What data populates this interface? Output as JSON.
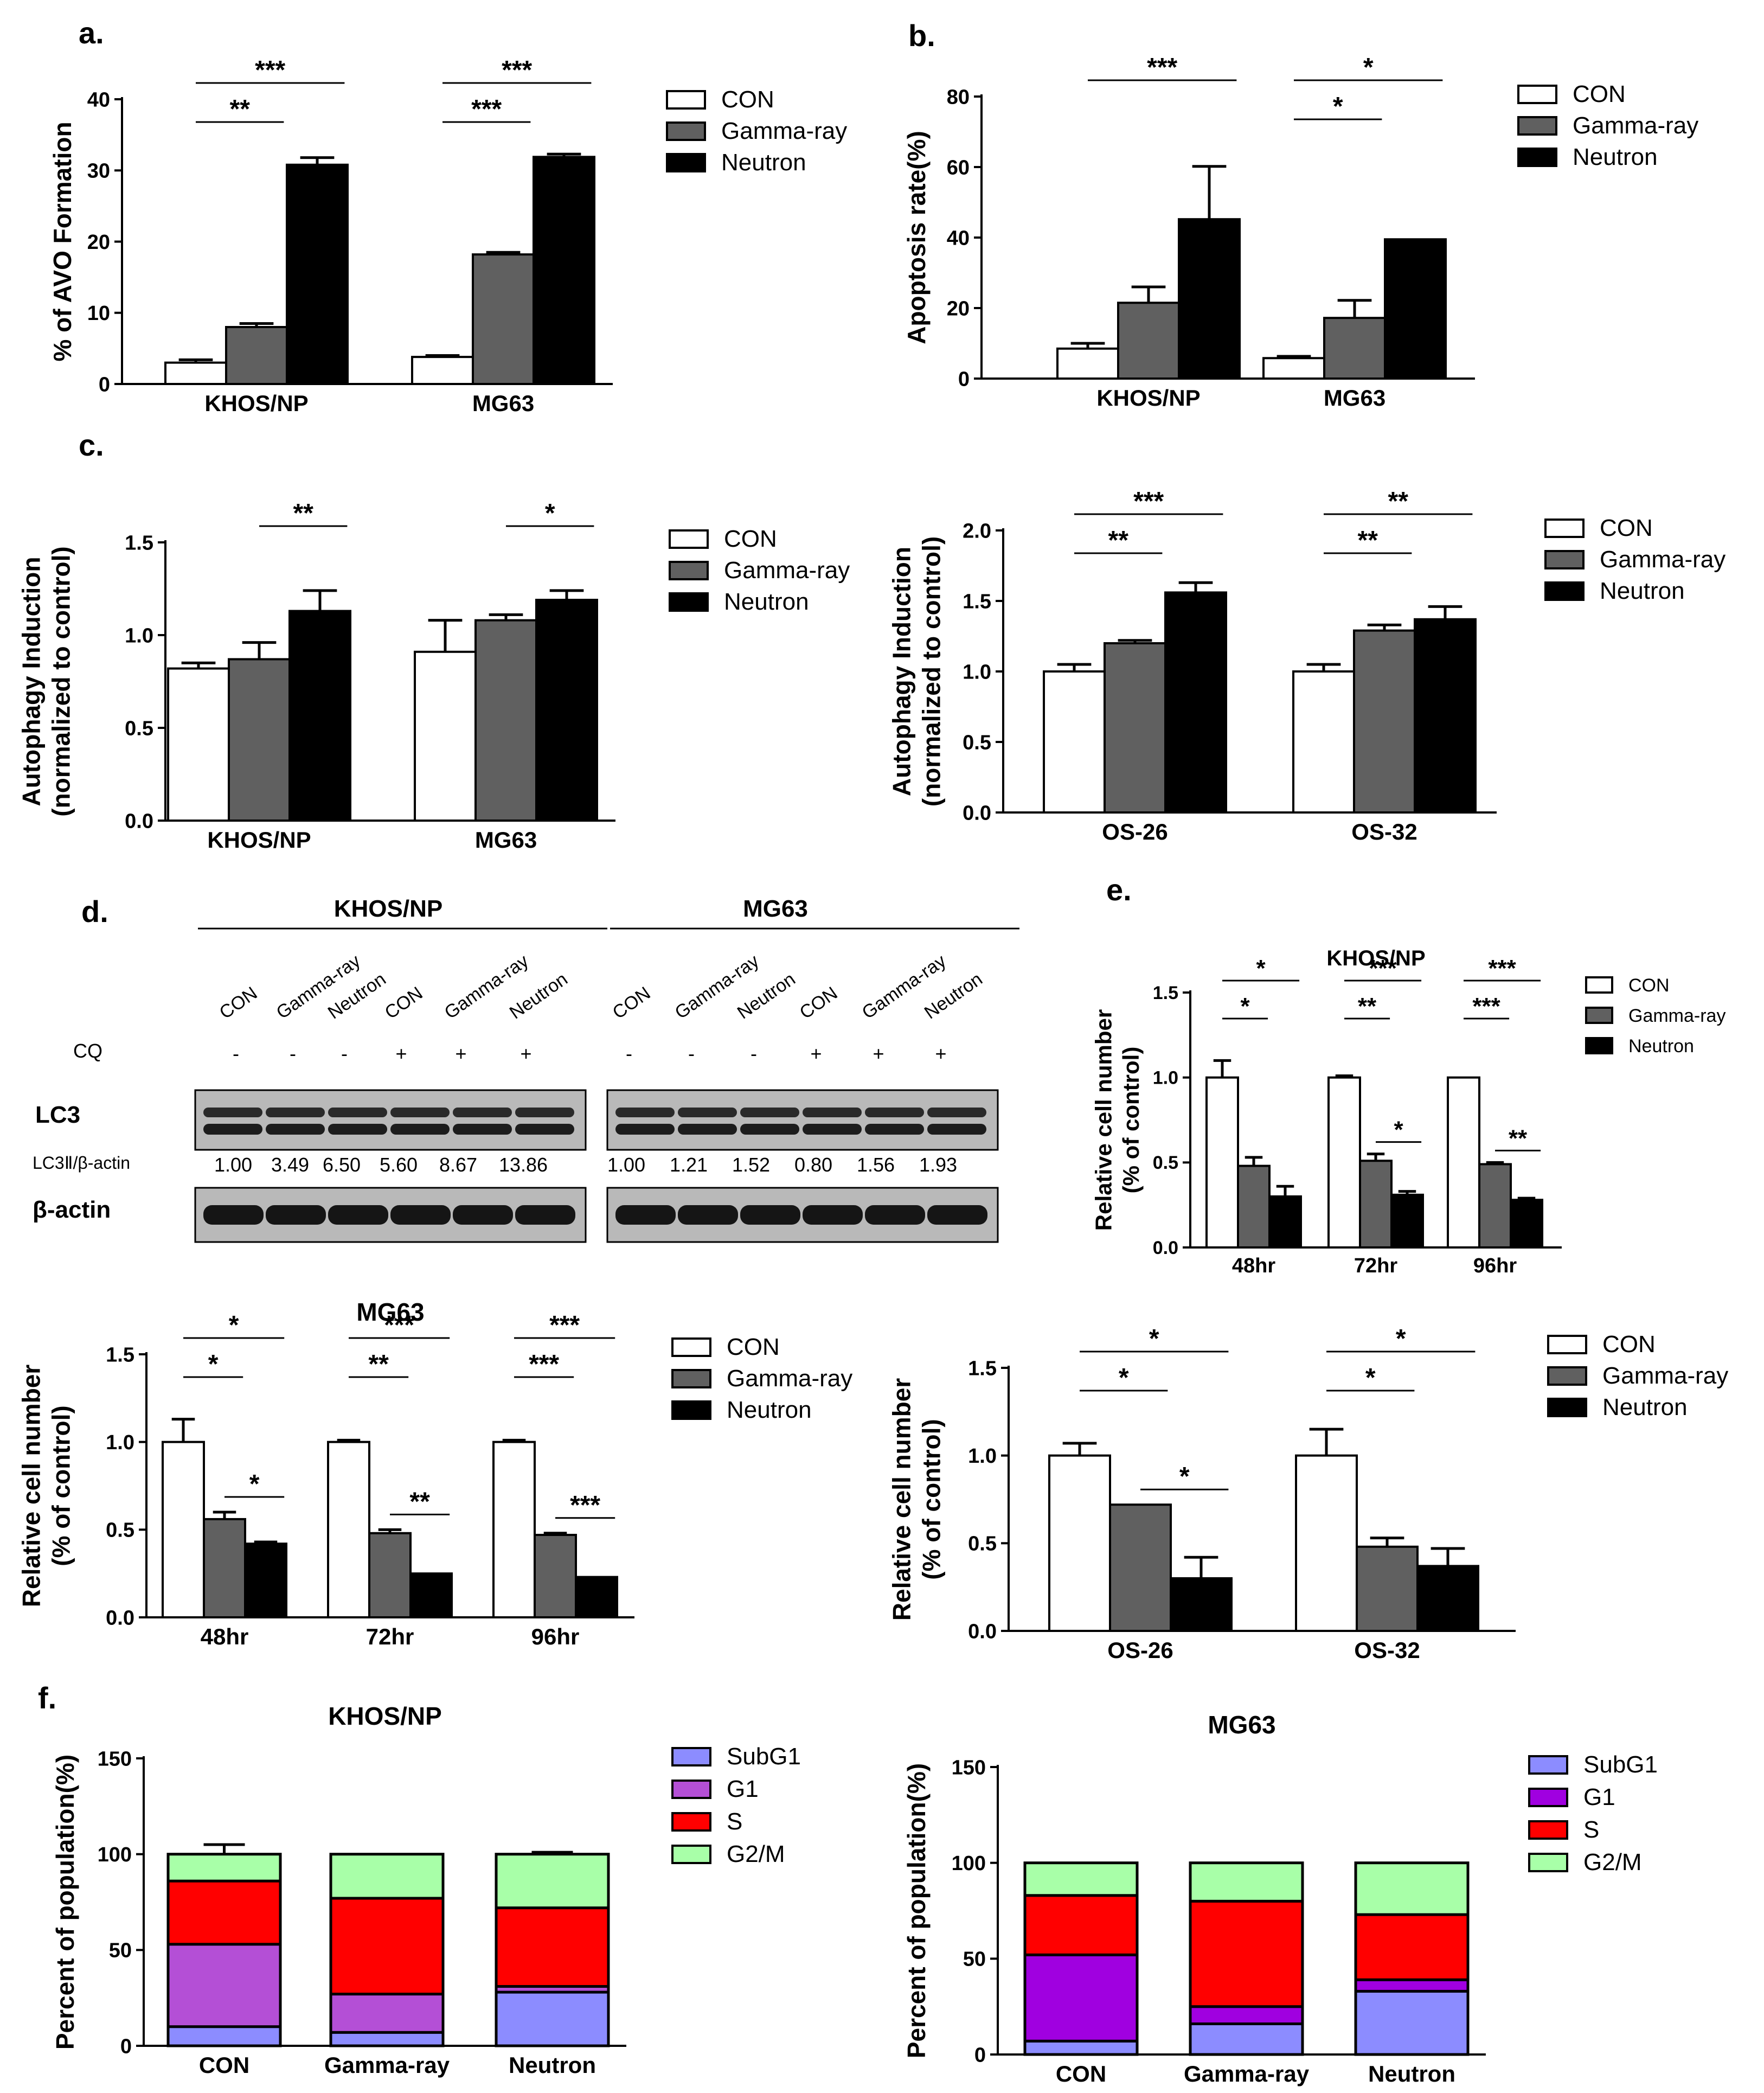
{
  "panel_labels": {
    "a": "a.",
    "b": "b.",
    "c": "c.",
    "d": "d.",
    "e": "e.",
    "f": "f."
  },
  "colors": {
    "con": "#ffffff",
    "gamma": "#606060",
    "neutron": "#000000",
    "subg1": "#8c8cff",
    "g1_khos": "#b44fd6",
    "g1_mg63": "#a000e0",
    "s": "#ff0000",
    "g2m": "#a8ffa8"
  },
  "legend3": [
    "CON",
    "Gamma-ray",
    "Neutron"
  ],
  "legend4": [
    "SubG1",
    "G1",
    "S",
    "G2/M"
  ],
  "blot": {
    "group_left": "KHOS/NP",
    "group_right": "MG63",
    "lanes": [
      "CON",
      "Gamma-ray",
      "Neutron",
      "CON",
      "Gamma-ray",
      "Neutron"
    ],
    "cq_label": "CQ",
    "cq": [
      "-",
      "-",
      "-",
      "+",
      "+",
      "+"
    ],
    "lc3_label": "LC3",
    "ratio_label": "LC3Ⅱ/β-actin",
    "actin_label": "β-actin",
    "ratios_left": [
      "1.00",
      "3.49",
      "6.50",
      "5.60",
      "8.67",
      "13.86"
    ],
    "ratios_right": [
      "1.00",
      "1.21",
      "1.52",
      "0.80",
      "1.56",
      "1.93"
    ]
  },
  "chart_data": [
    {
      "id": "a",
      "type": "bar",
      "title": "",
      "ylabel": "% of AVO Formation",
      "xlabel": "",
      "categories": [
        "KHOS/NP",
        "MG63"
      ],
      "ylim": [
        0,
        40
      ],
      "yticks": [
        "0",
        "10",
        "20",
        "30",
        "40"
      ],
      "series": [
        {
          "name": "CON",
          "values": [
            3,
            3.8
          ],
          "errors": [
            0.4,
            0.2
          ]
        },
        {
          "name": "Gamma-ray",
          "values": [
            8,
            18.2
          ],
          "errors": [
            0.5,
            0.3
          ]
        },
        {
          "name": "Neutron",
          "values": [
            30.8,
            31.9
          ],
          "errors": [
            1.0,
            0.4
          ]
        }
      ],
      "annotations": [
        {
          "text": "**",
          "group": 0,
          "from": 0,
          "to": 1,
          "level": 0
        },
        {
          "text": "***",
          "group": 0,
          "from": 0,
          "to": 2,
          "level": 1
        },
        {
          "text": "***",
          "group": 1,
          "from": 0,
          "to": 1,
          "level": 0
        },
        {
          "text": "***",
          "group": 1,
          "from": 0,
          "to": 2,
          "level": 1
        }
      ]
    },
    {
      "id": "b",
      "type": "bar",
      "title": "",
      "ylabel": "Apoptosis rate(%)",
      "xlabel": "",
      "categories": [
        "KHOS/NP",
        "MG63"
      ],
      "ylim": [
        0,
        80
      ],
      "yticks": [
        "0",
        "20",
        "40",
        "60",
        "80"
      ],
      "series": [
        {
          "name": "CON",
          "values": [
            8.5,
            5.8
          ],
          "errors": [
            1.5,
            0.5
          ]
        },
        {
          "name": "Gamma-ray",
          "values": [
            21.5,
            17.2
          ],
          "errors": [
            4.5,
            5.0
          ]
        },
        {
          "name": "Neutron",
          "values": [
            45.2,
            39.5
          ],
          "errors": [
            15,
            0
          ]
        }
      ],
      "annotations": [
        {
          "text": "***",
          "group": 0,
          "from": 0,
          "to": 2,
          "level": 1
        },
        {
          "text": "*",
          "group": 1,
          "from": 0,
          "to": 1,
          "level": 0
        },
        {
          "text": "*",
          "group": 1,
          "from": 0,
          "to": 2,
          "level": 1
        }
      ]
    },
    {
      "id": "c1",
      "type": "bar",
      "title": "",
      "ylabel": "Autophagy Induction|(normalized to control)",
      "xlabel": "",
      "categories": [
        "KHOS/NP",
        "MG63"
      ],
      "ylim": [
        0,
        1.5
      ],
      "yticks": [
        "0.0",
        "0.5",
        "1.0",
        "1.5"
      ],
      "series": [
        {
          "name": "CON",
          "values": [
            0.82,
            0.91
          ],
          "errors": [
            0.03,
            0.17
          ]
        },
        {
          "name": "Gamma-ray",
          "values": [
            0.87,
            1.08
          ],
          "errors": [
            0.09,
            0.03
          ]
        },
        {
          "name": "Neutron",
          "values": [
            1.13,
            1.19
          ],
          "errors": [
            0.11,
            0.05
          ]
        }
      ],
      "annotations": [
        {
          "text": "**",
          "group": 0,
          "from": 1,
          "to": 2,
          "level": 1
        },
        {
          "text": "*",
          "group": 1,
          "from": 1,
          "to": 2,
          "level": 1
        }
      ]
    },
    {
      "id": "c2",
      "type": "bar",
      "title": "",
      "ylabel": "Autophagy Induction|(normalized to control)",
      "xlabel": "",
      "categories": [
        "OS-26",
        "OS-32"
      ],
      "ylim": [
        0,
        2.0
      ],
      "yticks": [
        "0.0",
        "0.5",
        "1.0",
        "1.5",
        "2.0"
      ],
      "series": [
        {
          "name": "CON",
          "values": [
            1.0,
            1.0
          ],
          "errors": [
            0.05,
            0.05
          ]
        },
        {
          "name": "Gamma-ray",
          "values": [
            1.2,
            1.29
          ],
          "errors": [
            0.02,
            0.04
          ]
        },
        {
          "name": "Neutron",
          "values": [
            1.56,
            1.37
          ],
          "errors": [
            0.07,
            0.09
          ]
        }
      ],
      "annotations": [
        {
          "text": "**",
          "group": 0,
          "from": 0,
          "to": 1,
          "level": 0
        },
        {
          "text": "***",
          "group": 0,
          "from": 0,
          "to": 2,
          "level": 1
        },
        {
          "text": "**",
          "group": 1,
          "from": 0,
          "to": 1,
          "level": 0
        },
        {
          "text": "**",
          "group": 1,
          "from": 0,
          "to": 2,
          "level": 1
        }
      ]
    },
    {
      "id": "e1",
      "type": "bar",
      "title": "KHOS/NP",
      "ylabel": "Relative cell number|(% of control)",
      "xlabel": "",
      "categories": [
        "48hr",
        "72hr",
        "96hr"
      ],
      "ylim": [
        0,
        1.5
      ],
      "yticks": [
        "0.0",
        "0.5",
        "1.0",
        "1.5"
      ],
      "series": [
        {
          "name": "CON",
          "values": [
            1.0,
            1.0,
            1.0
          ],
          "errors": [
            0.1,
            0.01,
            0.0
          ]
        },
        {
          "name": "Gamma-ray",
          "values": [
            0.48,
            0.51,
            0.49
          ],
          "errors": [
            0.05,
            0.04,
            0.01
          ]
        },
        {
          "name": "Neutron",
          "values": [
            0.3,
            0.31,
            0.28
          ],
          "errors": [
            0.06,
            0.02,
            0.01
          ]
        }
      ],
      "annotations": [
        {
          "text": "*",
          "group": 0,
          "from": 0,
          "to": 1,
          "level": 0
        },
        {
          "text": "*",
          "group": 0,
          "from": 0,
          "to": 2,
          "level": 1
        },
        {
          "text": "**",
          "group": 1,
          "from": 0,
          "to": 1,
          "level": 0
        },
        {
          "text": "***",
          "group": 1,
          "from": 0,
          "to": 2,
          "level": 1
        },
        {
          "text": "*",
          "group": 1,
          "from": 1,
          "to": 2,
          "level": -1
        },
        {
          "text": "***",
          "group": 2,
          "from": 0,
          "to": 1,
          "level": 0
        },
        {
          "text": "***",
          "group": 2,
          "from": 0,
          "to": 2,
          "level": 1
        },
        {
          "text": "**",
          "group": 2,
          "from": 1,
          "to": 2,
          "level": -1
        }
      ]
    },
    {
      "id": "e2",
      "type": "bar",
      "title": "MG63",
      "ylabel": "Relative cell number|(% of control)",
      "xlabel": "",
      "categories": [
        "48hr",
        "72hr",
        "96hr"
      ],
      "ylim": [
        0,
        1.5
      ],
      "yticks": [
        "0.0",
        "0.5",
        "1.0",
        "1.5"
      ],
      "series": [
        {
          "name": "CON",
          "values": [
            1.0,
            1.0,
            1.0
          ],
          "errors": [
            0.13,
            0.01,
            0.01
          ]
        },
        {
          "name": "Gamma-ray",
          "values": [
            0.56,
            0.48,
            0.47
          ],
          "errors": [
            0.04,
            0.02,
            0.01
          ]
        },
        {
          "name": "Neutron",
          "values": [
            0.42,
            0.25,
            0.23
          ],
          "errors": [
            0.01,
            0.0,
            0.0
          ]
        }
      ],
      "annotations": [
        {
          "text": "*",
          "group": 0,
          "from": 0,
          "to": 1,
          "level": 0
        },
        {
          "text": "*",
          "group": 0,
          "from": 0,
          "to": 2,
          "level": 1
        },
        {
          "text": "*",
          "group": 0,
          "from": 1,
          "to": 2,
          "level": -1
        },
        {
          "text": "**",
          "group": 1,
          "from": 0,
          "to": 1,
          "level": 0
        },
        {
          "text": "***",
          "group": 1,
          "from": 0,
          "to": 2,
          "level": 1
        },
        {
          "text": "**",
          "group": 1,
          "from": 1,
          "to": 2,
          "level": -1
        },
        {
          "text": "***",
          "group": 2,
          "from": 0,
          "to": 1,
          "level": 0
        },
        {
          "text": "***",
          "group": 2,
          "from": 0,
          "to": 2,
          "level": 1
        },
        {
          "text": "***",
          "group": 2,
          "from": 1,
          "to": 2,
          "level": -1
        }
      ]
    },
    {
      "id": "e3",
      "type": "bar",
      "title": "",
      "ylabel": "Relative cell number|(% of control)",
      "xlabel": "",
      "categories": [
        "OS-26",
        "OS-32"
      ],
      "ylim": [
        0,
        1.5
      ],
      "yticks": [
        "0.0",
        "0.5",
        "1.0",
        "1.5"
      ],
      "series": [
        {
          "name": "CON",
          "values": [
            1.0,
            1.0
          ],
          "errors": [
            0.07,
            0.15
          ]
        },
        {
          "name": "Gamma-ray",
          "values": [
            0.72,
            0.48
          ],
          "errors": [
            0.0,
            0.05
          ]
        },
        {
          "name": "Neutron",
          "values": [
            0.3,
            0.37
          ],
          "errors": [
            0.12,
            0.1
          ]
        }
      ],
      "annotations": [
        {
          "text": "*",
          "group": 0,
          "from": 0,
          "to": 1,
          "level": 0
        },
        {
          "text": "*",
          "group": 0,
          "from": 0,
          "to": 2,
          "level": 1
        },
        {
          "text": "*",
          "group": 0,
          "from": 1,
          "to": 2,
          "level": -1
        },
        {
          "text": "*",
          "group": 1,
          "from": 0,
          "to": 1,
          "level": 0
        },
        {
          "text": "*",
          "group": 1,
          "from": 0,
          "to": 2,
          "level": 1
        }
      ]
    },
    {
      "id": "f1",
      "type": "stacked_bar",
      "title": "KHOS/NP",
      "ylabel": "Percent of population(%)",
      "xlabel": "",
      "categories": [
        "CON",
        "Gamma-ray",
        "Neutron"
      ],
      "ylim": [
        0,
        150
      ],
      "yticks": [
        "0",
        "50",
        "100",
        "150"
      ],
      "series": [
        {
          "name": "SubG1",
          "values": [
            10,
            7,
            28
          ],
          "errors": [
            6,
            0,
            3
          ]
        },
        {
          "name": "G1",
          "values": [
            43,
            20,
            3
          ],
          "errors": [
            0,
            0,
            0
          ]
        },
        {
          "name": "S",
          "values": [
            33,
            50,
            41
          ],
          "errors": [
            0,
            0,
            3
          ]
        },
        {
          "name": "G2/M",
          "values": [
            14,
            23,
            28
          ],
          "errors": [
            5,
            0,
            1
          ]
        }
      ]
    },
    {
      "id": "f2",
      "type": "stacked_bar",
      "title": "MG63",
      "ylabel": "Percent of population(%)",
      "xlabel": "",
      "categories": [
        "CON",
        "Gamma-ray",
        "Neutron"
      ],
      "ylim": [
        0,
        150
      ],
      "yticks": [
        "0",
        "50",
        "100",
        "150"
      ],
      "series": [
        {
          "name": "SubG1",
          "values": [
            7,
            16,
            33
          ],
          "errors": [
            0,
            1,
            0
          ]
        },
        {
          "name": "G1",
          "values": [
            45,
            9,
            6
          ],
          "errors": [
            1,
            1,
            1
          ]
        },
        {
          "name": "S",
          "values": [
            31,
            55,
            34
          ],
          "errors": [
            0,
            1,
            6
          ]
        },
        {
          "name": "G2/M",
          "values": [
            17,
            20,
            27
          ],
          "errors": [
            0,
            0,
            0
          ]
        }
      ]
    }
  ]
}
